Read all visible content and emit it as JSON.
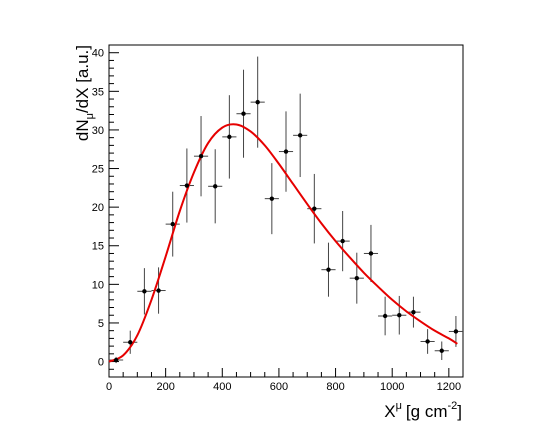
{
  "chart_data": {
    "type": "scatter",
    "xlabel": "X",
    "xlabel_sup": "μ",
    "xlabel_unit": "[g cm",
    "xlabel_unit_sup": "-2",
    "xlabel_unit_end": "]",
    "ylabel_main": "dN",
    "ylabel_sub": "μ",
    "ylabel_rest": "/dX [a.u.]",
    "xlim": [
      0,
      1250
    ],
    "ylim": [
      -2,
      41
    ],
    "xticks": [
      "0",
      "200",
      "400",
      "600",
      "800",
      "1000",
      "1200"
    ],
    "yticks": [
      "0",
      "5",
      "10",
      "15",
      "20",
      "25",
      "30",
      "35",
      "40"
    ],
    "grid": false,
    "bin_half_width": 25,
    "points": {
      "x": [
        25,
        75,
        125,
        175,
        225,
        275,
        325,
        375,
        425,
        475,
        525,
        575,
        625,
        675,
        725,
        775,
        825,
        875,
        925,
        975,
        1025,
        1075,
        1125,
        1175,
        1225
      ],
      "y": [
        0.2,
        2.5,
        9.1,
        9.2,
        17.8,
        22.8,
        26.6,
        22.7,
        29.1,
        32.1,
        33.6,
        21.1,
        27.2,
        29.3,
        19.8,
        11.9,
        15.6,
        10.8,
        14.0,
        5.9,
        6.0,
        6.4,
        2.6,
        1.4,
        3.9
      ],
      "err": [
        0.4,
        1.5,
        3.0,
        3.0,
        4.2,
        4.8,
        5.2,
        4.8,
        5.4,
        5.7,
        5.9,
        4.6,
        5.2,
        5.4,
        4.5,
        3.5,
        3.9,
        3.3,
        3.7,
        2.5,
        2.5,
        2.0,
        1.6,
        1.2,
        2.0
      ]
    },
    "fit": {
      "color": "#e60000",
      "x": [
        0,
        50,
        100,
        150,
        200,
        250,
        300,
        350,
        400,
        450,
        500,
        550,
        600,
        650,
        700,
        750,
        800,
        850,
        900,
        950,
        1000,
        1050,
        1100,
        1150,
        1200,
        1230
      ],
      "y": [
        0.0,
        0.8,
        3.4,
        8.0,
        13.6,
        19.5,
        24.5,
        28.3,
        30.3,
        30.7,
        29.8,
        28.0,
        25.6,
        23.0,
        20.4,
        17.9,
        15.6,
        13.5,
        11.5,
        9.7,
        8.0,
        6.5,
        5.2,
        4.0,
        3.0,
        2.3
      ]
    }
  }
}
